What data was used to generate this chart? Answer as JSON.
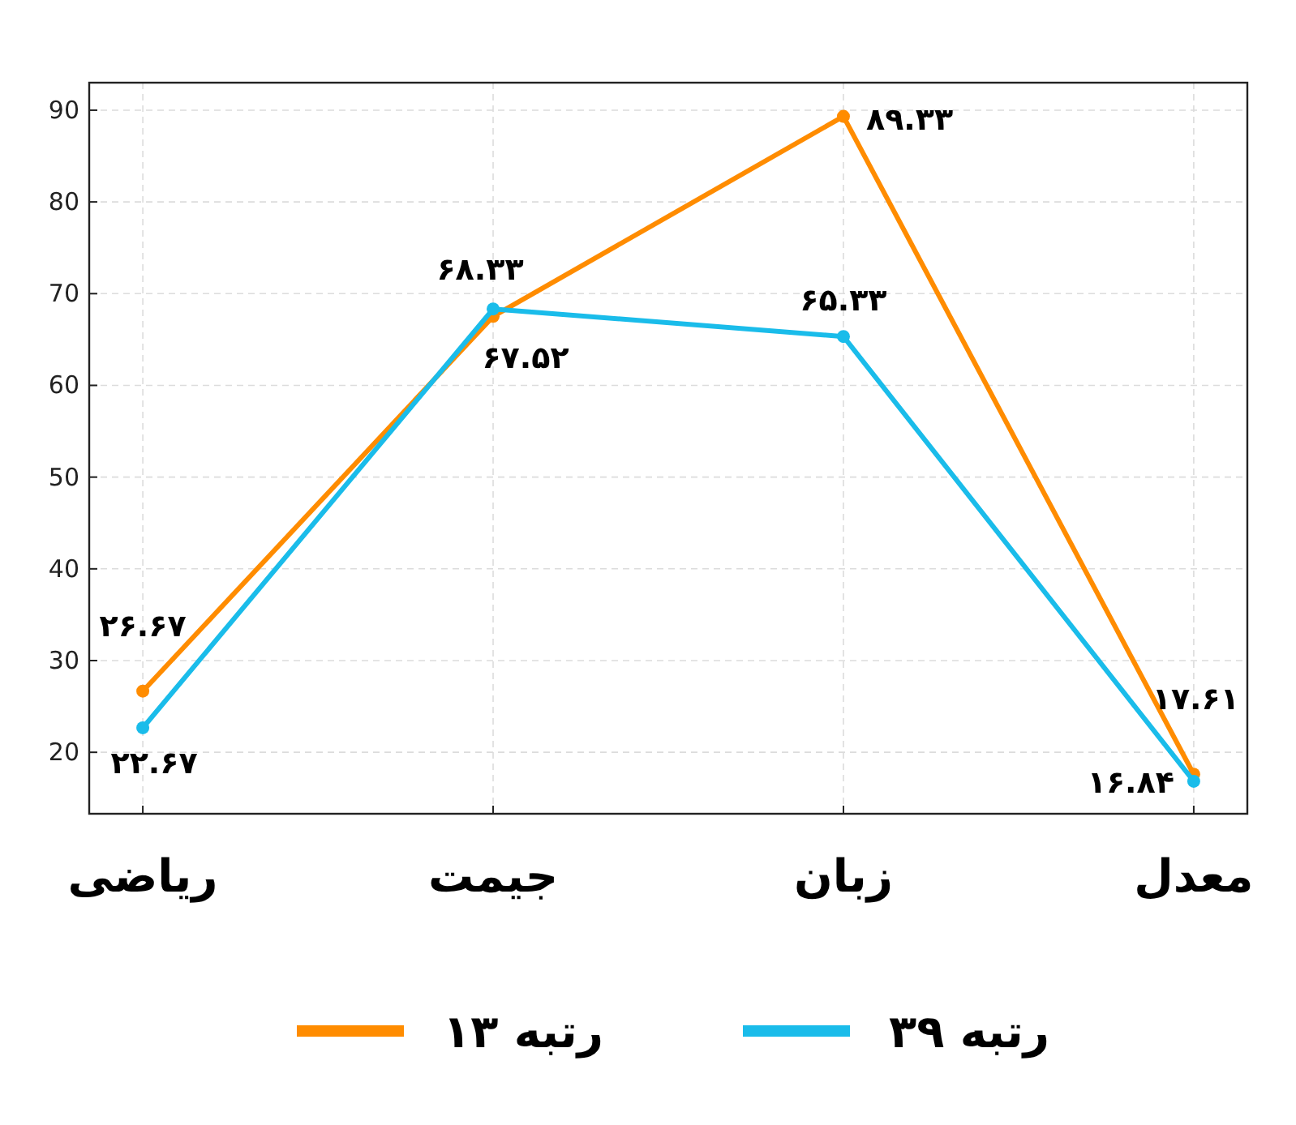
{
  "chart_data": {
    "type": "line",
    "categories": [
      "ریاضی",
      "جیمت",
      "زبان",
      "معدل"
    ],
    "series": [
      {
        "name": "رتبه ۱۳",
        "color": "#ff8c00",
        "values": [
          26.67,
          67.52,
          89.33,
          17.61
        ],
        "value_labels": [
          "۲۶.۶۷",
          "۶۷.۵۲",
          "۸۹.۳۳",
          "۱۷.۶۱"
        ]
      },
      {
        "name": "رتبه ۳۹",
        "color": "#1abcea",
        "values": [
          22.67,
          68.33,
          65.33,
          16.84
        ],
        "value_labels": [
          "۲۲.۶۷",
          "۶۸.۳۳",
          "۶۵.۳۳",
          "۱۶.۸۴"
        ]
      }
    ],
    "ylim": [
      13.3,
      93
    ],
    "yticks": [
      20,
      30,
      40,
      50,
      60,
      70,
      80,
      90
    ],
    "grid": true,
    "legend": "bottom",
    "marker": "circle",
    "line_style": "solid"
  }
}
